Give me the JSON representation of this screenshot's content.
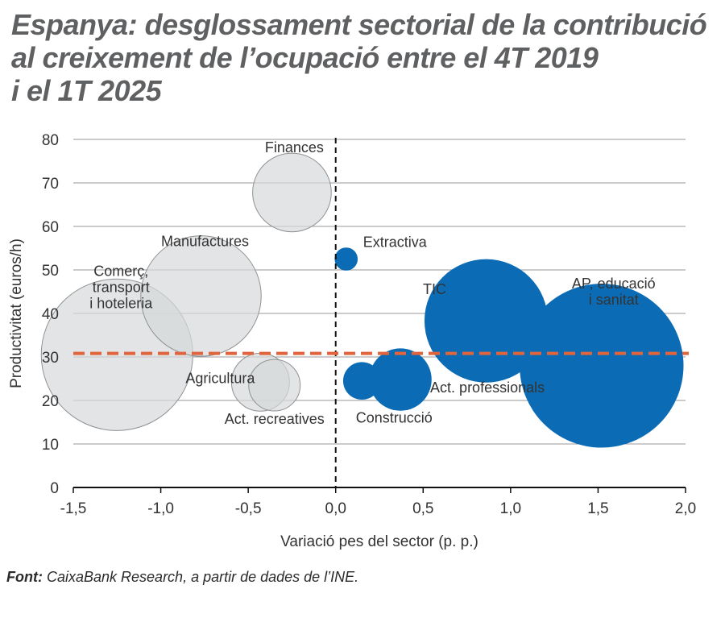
{
  "title_lines": [
    "Espanya: desglossament sectorial de la contribució",
    "al creixement de l’ocupació entre el 4T 2019",
    "i el 1T 2025"
  ],
  "source": {
    "label": "Font:",
    "text": " CaixaBank Research, a partir de dades de l’INE."
  },
  "colors": {
    "negative_fill": "#d5d8da",
    "negative_stroke": "#8f9193",
    "positive_fill": "#0b6cb5",
    "average_line": "#e0643c",
    "grid": "#9a9a9a"
  },
  "chart_data": {
    "type": "scatter",
    "xlabel": "Variació pes del sector (p. p.)",
    "ylabel": "Productivitat (euros/h)",
    "xlim": [
      -1.5,
      2.0
    ],
    "ylim": [
      0,
      80
    ],
    "xticks": [
      -1.5,
      -1.0,
      -0.5,
      0.0,
      0.5,
      1.0,
      1.5,
      2.0
    ],
    "xtick_labels": [
      "-1,5",
      "-1,0",
      "-0,5",
      "0,0",
      "0,5",
      "1,0",
      "1,5",
      "2,0"
    ],
    "yticks": [
      0,
      10,
      20,
      30,
      40,
      50,
      60,
      70,
      80
    ],
    "ytick_labels": [
      "0",
      "10",
      "20",
      "30",
      "40",
      "50",
      "60",
      "70",
      "80"
    ],
    "average_productivity": 30.8,
    "series": [
      {
        "name": "Finances",
        "label_lines": [
          "Finances"
        ],
        "x": -0.25,
        "y": 67.8,
        "size": 0.35,
        "group": "negative"
      },
      {
        "name": "Manufactures",
        "label_lines": [
          "Manufactures"
        ],
        "x": -0.77,
        "y": 44.0,
        "size": 0.82,
        "group": "negative"
      },
      {
        "name": "Comerç, transport i hoteleria",
        "label_lines": [
          "Comerç,",
          "transport",
          "i hoteleria"
        ],
        "x": -1.25,
        "y": 30.5,
        "size": 1.3,
        "group": "negative"
      },
      {
        "name": "Agricultura",
        "label_lines": [
          "Agricultura"
        ],
        "x": -0.43,
        "y": 24.2,
        "size": 0.19,
        "group": "negative"
      },
      {
        "name": "Act. recreatives",
        "label_lines": [
          "Act. recreatives"
        ],
        "x": -0.35,
        "y": 23.5,
        "size": 0.15,
        "group": "negative"
      },
      {
        "name": "Extractiva",
        "label_lines": [
          "Extractiva"
        ],
        "x": 0.06,
        "y": 52.5,
        "size": 0.03,
        "group": "positive"
      },
      {
        "name": "Construcció",
        "label_lines": [
          "Construcció"
        ],
        "x": 0.15,
        "y": 24.5,
        "size": 0.08,
        "group": "positive"
      },
      {
        "name": "Act. professionals",
        "label_lines": [
          "Act. professionals"
        ],
        "x": 0.37,
        "y": 24.8,
        "size": 0.22,
        "group": "positive"
      },
      {
        "name": "TIC",
        "label_lines": [
          "TIC"
        ],
        "x": 0.86,
        "y": 38.3,
        "size": 0.86,
        "group": "positive"
      },
      {
        "name": "AP, educació i sanitat",
        "label_lines": [
          "AP, educació",
          "i sanitat"
        ],
        "x": 1.52,
        "y": 28.0,
        "size": 1.52,
        "group": "positive"
      }
    ]
  }
}
